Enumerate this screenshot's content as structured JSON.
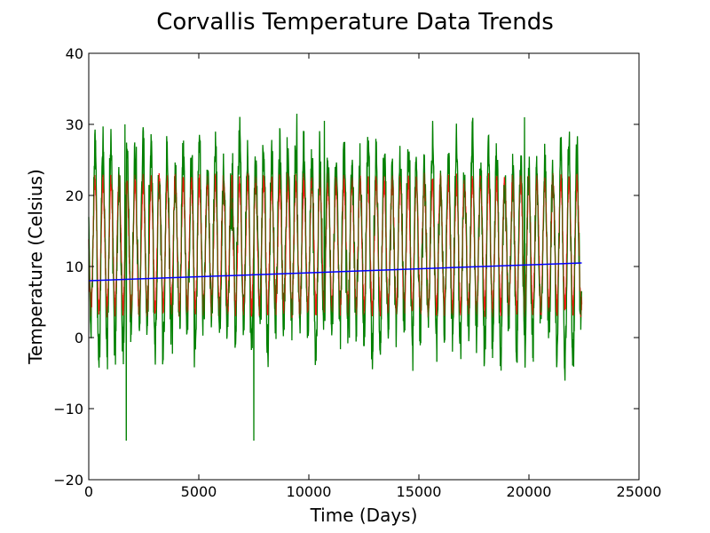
{
  "chart_data": {
    "type": "line",
    "title": "Corvallis Temperature Data Trends",
    "xlabel": "Time (Days)",
    "ylabel": "Temperature (Celsius)",
    "xlim": [
      0,
      25000
    ],
    "ylim": [
      -20,
      40
    ],
    "xticks": [
      0,
      5000,
      10000,
      15000,
      20000,
      25000
    ],
    "xtick_labels": [
      "0",
      "5000",
      "10000",
      "15000",
      "20000",
      "25000"
    ],
    "yticks": [
      -20,
      -10,
      0,
      10,
      20,
      30,
      40
    ],
    "ytick_labels": [
      "−20",
      "−10",
      "0",
      "10",
      "20",
      "30",
      "40"
    ],
    "grid": false,
    "series": [
      {
        "color": "#008000",
        "description": "daily temperature",
        "x_range": [
          0,
          22400
        ],
        "period_days": 365,
        "approx_annual_max_range": [
          22,
          28
        ],
        "approx_annual_min_range": [
          -14.5,
          3
        ],
        "extremes": [
          {
            "x": 1650,
            "y": 30
          },
          {
            "x": 1700,
            "y": -14.5
          },
          {
            "x": 7500,
            "y": -14.5
          },
          {
            "x": 10700,
            "y": 30.5
          },
          {
            "x": 19800,
            "y": 31
          }
        ]
      },
      {
        "color": "#ff0000",
        "description": "smoothed temperature",
        "x_range": [
          0,
          22400
        ],
        "period_days": 365,
        "approx_range": [
          3,
          23
        ]
      },
      {
        "color": "#0000ff",
        "description": "linear trend",
        "x": [
          0,
          22400
        ],
        "y": [
          8.0,
          10.5
        ]
      }
    ]
  }
}
